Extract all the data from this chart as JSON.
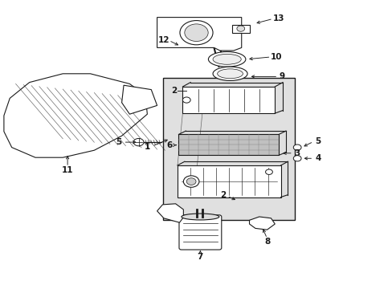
{
  "bg_color": "#ffffff",
  "line_color": "#1a1a1a",
  "box_bg": "#e0e0e0"
}
